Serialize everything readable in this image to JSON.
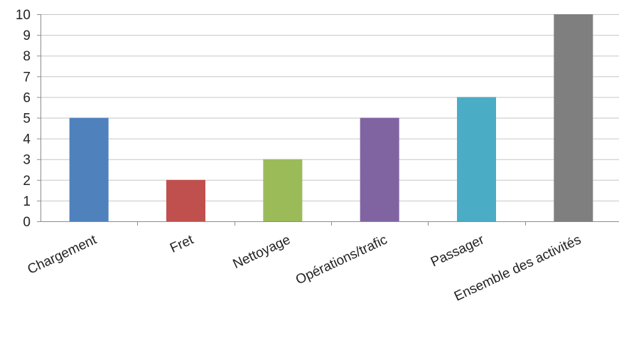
{
  "chart_data": {
    "type": "bar",
    "categories": [
      "Chargement",
      "Fret",
      "Nettoyage",
      "Opérations/trafic",
      "Passager",
      "Ensemble des activités"
    ],
    "values": [
      5,
      2,
      3,
      5,
      6,
      10
    ],
    "colors": [
      "#4f81bd",
      "#c0504d",
      "#9bbb59",
      "#8064a2",
      "#4bacc6",
      "#7f7f7f"
    ],
    "title": "",
    "xlabel": "",
    "ylabel": "",
    "ylim": [
      0,
      10
    ],
    "yticks": [
      0,
      1,
      2,
      3,
      4,
      5,
      6,
      7,
      8,
      9,
      10
    ],
    "grid": true,
    "legend": "none"
  }
}
